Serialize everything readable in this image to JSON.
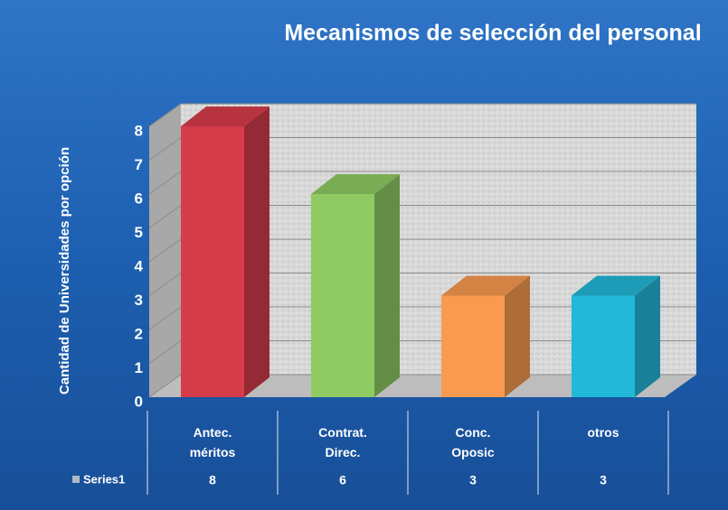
{
  "chart_data": {
    "type": "bar3d",
    "title": "Mecanismos de selección del personal",
    "y_label": "Cantidad de Universidades por opción",
    "categories": [
      "Antec. méritos",
      "Contrat. Direc.",
      "Conc. Oposic",
      "otros"
    ],
    "series": [
      {
        "name": "Series1",
        "values": [
          8,
          6,
          3,
          3
        ]
      }
    ],
    "colors": [
      "#d63c4a",
      "#8fcb62",
      "#f99a50",
      "#22b8d8"
    ],
    "ylim": [
      0,
      8
    ],
    "yticks": [
      0,
      1,
      2,
      3,
      4,
      5,
      6,
      7,
      8
    ],
    "grid": true,
    "data_table": true
  }
}
